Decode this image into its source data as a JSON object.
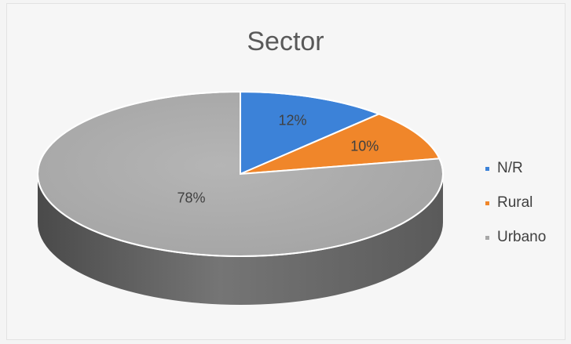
{
  "chart_data": {
    "type": "pie",
    "title": "Sector",
    "categories": [
      "N/R",
      "Rural",
      "Urbano"
    ],
    "values": [
      12,
      10,
      78
    ],
    "value_labels": [
      "12%",
      "10%",
      "78%"
    ],
    "colors": [
      "#3c82d8",
      "#f0862a",
      "#a8a8a8"
    ],
    "style": "3d",
    "legend": "right"
  }
}
